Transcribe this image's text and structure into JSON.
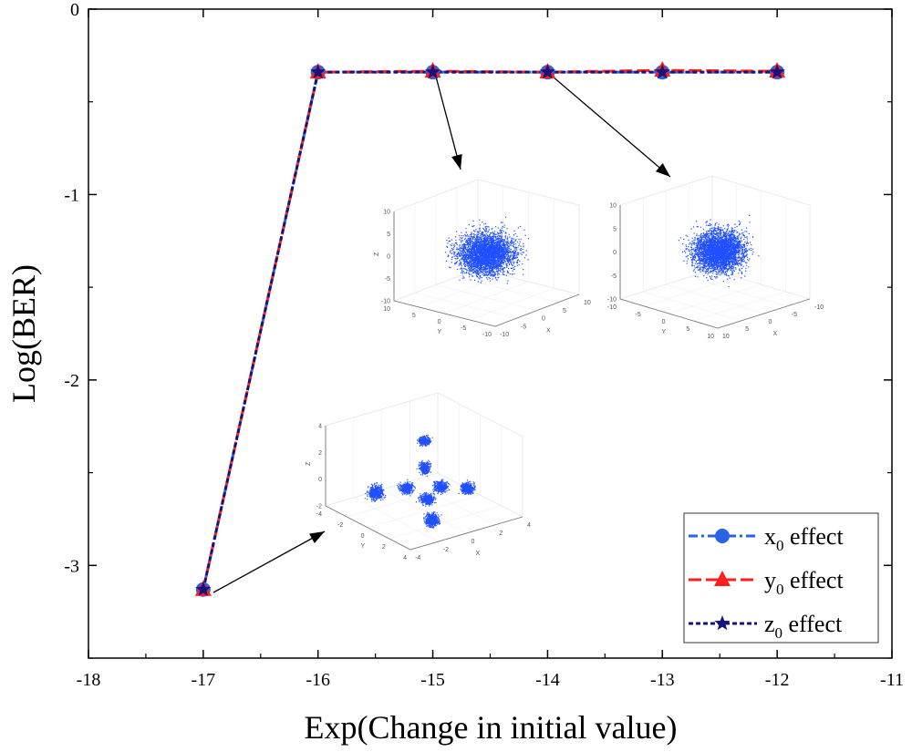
{
  "chart_data": {
    "type": "line",
    "title": "",
    "xlabel": "Exp(Change in initial value)",
    "ylabel": "Log(BER)",
    "xlim": [
      -18,
      -11
    ],
    "ylim": [
      -3.5,
      0
    ],
    "xticks": [
      "-18",
      "-17",
      "-16",
      "-15",
      "-14",
      "-13",
      "-12",
      "-11"
    ],
    "yticks": [
      "0",
      "-1",
      "-2",
      "-3"
    ],
    "grid": false,
    "legend_position": "bottom-right",
    "x": [
      -17,
      -16,
      -15,
      -14,
      -13,
      -12
    ],
    "series": [
      {
        "name": "x0 effect",
        "label_main": "x",
        "label_sub": "0",
        "label_rest": " effect",
        "color": "#2b63e8",
        "marker": "circle",
        "dash": "dash-dot",
        "values": [
          -3.13,
          -0.34,
          -0.34,
          -0.34,
          -0.34,
          -0.34
        ]
      },
      {
        "name": "y0 effect",
        "label_main": "y",
        "label_sub": "0",
        "label_rest": " effect",
        "color": "#ff1f1f",
        "marker": "triangle",
        "dash": "long-dash",
        "values": [
          -3.13,
          -0.34,
          -0.335,
          -0.34,
          -0.33,
          -0.335
        ]
      },
      {
        "name": "z0 effect",
        "label_main": "z",
        "label_sub": "0",
        "label_rest": " effect",
        "color": "#14147a",
        "marker": "star",
        "dash": "short-dash",
        "values": [
          -3.13,
          -0.34,
          -0.34,
          -0.34,
          -0.34,
          -0.34
        ]
      }
    ],
    "insets": [
      {
        "points_to_x": -15,
        "type": "3d-scatter",
        "shape": "gaussian-cloud",
        "z_ticks": [
          "10",
          "5",
          "0",
          "-5",
          "-10"
        ],
        "y_ticks": [
          "10",
          "5",
          "0",
          "-5",
          "-10"
        ],
        "x_ticks": [
          "-10",
          "-5",
          "0",
          "5",
          "10"
        ],
        "z_label": "Z",
        "y_label": "Y",
        "x_label": "X"
      },
      {
        "points_to_x": -14,
        "type": "3d-scatter",
        "shape": "gaussian-cloud",
        "z_ticks": [
          "10",
          "5",
          "0",
          "-5",
          "-10"
        ],
        "y_ticks": [
          "-10",
          "-5",
          "0",
          "5",
          "10"
        ],
        "x_ticks": [
          "10",
          "5",
          "0",
          "-5",
          "-10"
        ],
        "z_label": "",
        "y_label": "Y",
        "x_label": "X"
      },
      {
        "points_to_x": -17,
        "type": "3d-scatter",
        "shape": "eight-clusters",
        "z_ticks": [
          "4",
          "2",
          "0",
          "-2"
        ],
        "y_ticks": [
          "-4",
          "-2",
          "0",
          "2",
          "4"
        ],
        "x_ticks": [
          "-4",
          "-2",
          "0",
          "2",
          "4"
        ],
        "z_label": "Z",
        "y_label": "Y",
        "x_label": "X"
      }
    ],
    "scatter_color": "#1f4fff"
  }
}
